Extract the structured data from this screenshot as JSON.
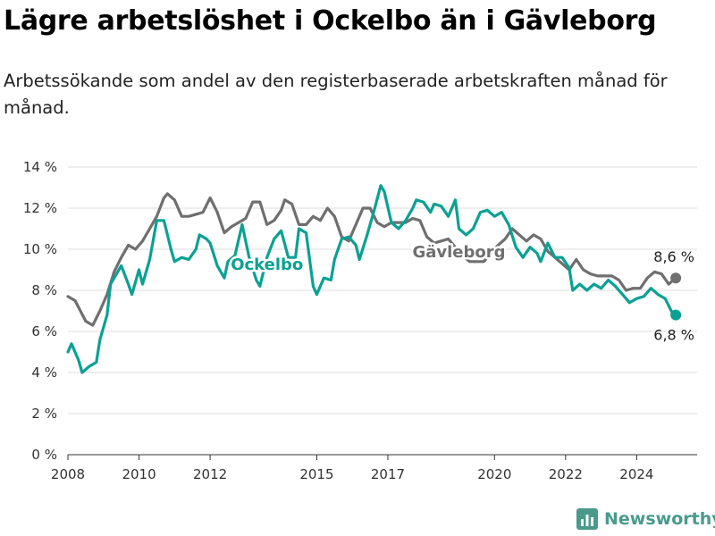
{
  "title": "Lägre arbetslöshet i Ockelbo än i Gävleborg",
  "subtitle": "Arbetssökande som andel av den registerbaserade arbetskraften månad för månad.",
  "brand": "Newsworthy",
  "colors": {
    "ockelbo": "#0aa193",
    "gavleborg": "#6f6f70",
    "grid": "#dcdcdc"
  },
  "icons": {
    "brand_logo": "bar-chart-icon"
  },
  "chart_data": {
    "type": "line",
    "title": "Lägre arbetslöshet i Ockelbo än i Gävleborg",
    "subtitle": "Arbetssökande som andel av den registerbaserade arbetskraften månad för månad.",
    "xlabel": "",
    "ylabel": "",
    "xlim": [
      2008,
      2025.7
    ],
    "ylim": [
      0,
      14
    ],
    "grid": true,
    "y_ticks": [
      "0 %",
      "2 %",
      "4 %",
      "6 %",
      "8 %",
      "10 %",
      "12 %",
      "14 %"
    ],
    "x_ticks": [
      "2008",
      "2010",
      "2012",
      "2015",
      "2017",
      "2020",
      "2022",
      "2024"
    ],
    "series": [
      {
        "name": "Gävleborg",
        "end_label": "8,6 %",
        "points": [
          [
            2008.0,
            7.7
          ],
          [
            2008.2,
            7.5
          ],
          [
            2008.5,
            6.5
          ],
          [
            2008.7,
            6.3
          ],
          [
            2008.9,
            7.0
          ],
          [
            2009.1,
            7.8
          ],
          [
            2009.3,
            8.9
          ],
          [
            2009.5,
            9.6
          ],
          [
            2009.7,
            10.2
          ],
          [
            2009.9,
            10.0
          ],
          [
            2010.1,
            10.4
          ],
          [
            2010.3,
            11.0
          ],
          [
            2010.5,
            11.6
          ],
          [
            2010.7,
            12.5
          ],
          [
            2010.8,
            12.7
          ],
          [
            2011.0,
            12.4
          ],
          [
            2011.2,
            11.6
          ],
          [
            2011.4,
            11.6
          ],
          [
            2011.6,
            11.7
          ],
          [
            2011.8,
            11.8
          ],
          [
            2012.0,
            12.5
          ],
          [
            2012.2,
            11.8
          ],
          [
            2012.4,
            10.8
          ],
          [
            2012.6,
            11.1
          ],
          [
            2012.8,
            11.3
          ],
          [
            2013.0,
            11.5
          ],
          [
            2013.2,
            12.3
          ],
          [
            2013.4,
            12.3
          ],
          [
            2013.6,
            11.2
          ],
          [
            2013.8,
            11.4
          ],
          [
            2014.0,
            11.9
          ],
          [
            2014.1,
            12.4
          ],
          [
            2014.3,
            12.2
          ],
          [
            2014.5,
            11.2
          ],
          [
            2014.7,
            11.2
          ],
          [
            2014.9,
            11.6
          ],
          [
            2015.1,
            11.4
          ],
          [
            2015.3,
            12.0
          ],
          [
            2015.5,
            11.6
          ],
          [
            2015.7,
            10.6
          ],
          [
            2015.9,
            10.4
          ],
          [
            2016.1,
            11.2
          ],
          [
            2016.3,
            12.0
          ],
          [
            2016.5,
            12.0
          ],
          [
            2016.7,
            11.3
          ],
          [
            2016.9,
            11.1
          ],
          [
            2017.1,
            11.3
          ],
          [
            2017.3,
            11.3
          ],
          [
            2017.5,
            11.3
          ],
          [
            2017.7,
            11.5
          ],
          [
            2017.9,
            11.4
          ],
          [
            2018.1,
            10.6
          ],
          [
            2018.3,
            10.3
          ],
          [
            2018.5,
            10.4
          ],
          [
            2018.7,
            10.5
          ],
          [
            2018.9,
            10.1
          ],
          [
            2019.1,
            9.7
          ],
          [
            2019.3,
            9.4
          ],
          [
            2019.5,
            9.4
          ],
          [
            2019.7,
            9.4
          ],
          [
            2019.9,
            9.8
          ],
          [
            2020.1,
            10.2
          ],
          [
            2020.3,
            10.5
          ],
          [
            2020.5,
            11.0
          ],
          [
            2020.7,
            10.7
          ],
          [
            2020.9,
            10.4
          ],
          [
            2021.1,
            10.7
          ],
          [
            2021.3,
            10.5
          ],
          [
            2021.5,
            9.9
          ],
          [
            2021.7,
            9.6
          ],
          [
            2021.9,
            9.3
          ],
          [
            2022.1,
            9.0
          ],
          [
            2022.3,
            9.5
          ],
          [
            2022.5,
            9.0
          ],
          [
            2022.7,
            8.8
          ],
          [
            2022.9,
            8.7
          ],
          [
            2023.1,
            8.7
          ],
          [
            2023.3,
            8.7
          ],
          [
            2023.5,
            8.5
          ],
          [
            2023.7,
            8.0
          ],
          [
            2023.9,
            8.1
          ],
          [
            2024.1,
            8.1
          ],
          [
            2024.3,
            8.6
          ],
          [
            2024.5,
            8.9
          ],
          [
            2024.7,
            8.8
          ],
          [
            2024.9,
            8.3
          ],
          [
            2025.1,
            8.6
          ]
        ]
      },
      {
        "name": "Ockelbo",
        "end_label": "6,8 %",
        "points": [
          [
            2008.0,
            5.0
          ],
          [
            2008.1,
            5.4
          ],
          [
            2008.3,
            4.6
          ],
          [
            2008.4,
            4.0
          ],
          [
            2008.6,
            4.3
          ],
          [
            2008.8,
            4.5
          ],
          [
            2008.9,
            5.6
          ],
          [
            2009.1,
            6.8
          ],
          [
            2009.2,
            8.3
          ],
          [
            2009.4,
            8.9
          ],
          [
            2009.5,
            9.2
          ],
          [
            2009.7,
            8.3
          ],
          [
            2009.8,
            7.8
          ],
          [
            2010.0,
            9.0
          ],
          [
            2010.1,
            8.3
          ],
          [
            2010.3,
            9.5
          ],
          [
            2010.5,
            11.4
          ],
          [
            2010.7,
            11.4
          ],
          [
            2010.9,
            10.0
          ],
          [
            2011.0,
            9.4
          ],
          [
            2011.2,
            9.6
          ],
          [
            2011.4,
            9.5
          ],
          [
            2011.6,
            10.0
          ],
          [
            2011.7,
            10.7
          ],
          [
            2011.9,
            10.5
          ],
          [
            2012.0,
            10.3
          ],
          [
            2012.2,
            9.2
          ],
          [
            2012.4,
            8.6
          ],
          [
            2012.5,
            9.4
          ],
          [
            2012.7,
            9.7
          ],
          [
            2012.9,
            11.2
          ],
          [
            2013.1,
            9.6
          ],
          [
            2013.3,
            8.5
          ],
          [
            2013.4,
            8.2
          ],
          [
            2013.6,
            9.6
          ],
          [
            2013.8,
            10.5
          ],
          [
            2014.0,
            10.9
          ],
          [
            2014.2,
            9.6
          ],
          [
            2014.4,
            9.6
          ],
          [
            2014.5,
            11.0
          ],
          [
            2014.7,
            10.8
          ],
          [
            2014.9,
            8.2
          ],
          [
            2015.0,
            7.8
          ],
          [
            2015.2,
            8.6
          ],
          [
            2015.4,
            8.5
          ],
          [
            2015.5,
            9.5
          ],
          [
            2015.7,
            10.5
          ],
          [
            2015.9,
            10.6
          ],
          [
            2016.1,
            10.2
          ],
          [
            2016.2,
            9.5
          ],
          [
            2016.4,
            10.6
          ],
          [
            2016.6,
            11.8
          ],
          [
            2016.8,
            13.1
          ],
          [
            2016.9,
            12.8
          ],
          [
            2017.1,
            11.3
          ],
          [
            2017.3,
            11.0
          ],
          [
            2017.5,
            11.4
          ],
          [
            2017.7,
            12.0
          ],
          [
            2017.8,
            12.4
          ],
          [
            2018.0,
            12.3
          ],
          [
            2018.2,
            11.8
          ],
          [
            2018.3,
            12.2
          ],
          [
            2018.5,
            12.1
          ],
          [
            2018.7,
            11.6
          ],
          [
            2018.9,
            12.4
          ],
          [
            2019.0,
            11.0
          ],
          [
            2019.2,
            10.7
          ],
          [
            2019.4,
            11.0
          ],
          [
            2019.6,
            11.8
          ],
          [
            2019.8,
            11.9
          ],
          [
            2020.0,
            11.6
          ],
          [
            2020.2,
            11.8
          ],
          [
            2020.4,
            11.2
          ],
          [
            2020.6,
            10.1
          ],
          [
            2020.8,
            9.6
          ],
          [
            2021.0,
            10.1
          ],
          [
            2021.2,
            9.8
          ],
          [
            2021.3,
            9.4
          ],
          [
            2021.5,
            10.3
          ],
          [
            2021.7,
            9.6
          ],
          [
            2021.9,
            9.6
          ],
          [
            2022.1,
            9.1
          ],
          [
            2022.2,
            8.0
          ],
          [
            2022.4,
            8.3
          ],
          [
            2022.6,
            8.0
          ],
          [
            2022.8,
            8.3
          ],
          [
            2023.0,
            8.1
          ],
          [
            2023.2,
            8.5
          ],
          [
            2023.4,
            8.2
          ],
          [
            2023.6,
            7.8
          ],
          [
            2023.8,
            7.4
          ],
          [
            2024.0,
            7.6
          ],
          [
            2024.2,
            7.7
          ],
          [
            2024.4,
            8.1
          ],
          [
            2024.6,
            7.8
          ],
          [
            2024.8,
            7.6
          ],
          [
            2025.0,
            6.9
          ],
          [
            2025.1,
            6.8
          ]
        ]
      }
    ],
    "series_labels": [
      {
        "text": "Gävleborg",
        "x": 2019.0,
        "y": 9.6
      },
      {
        "text": "Ockelbo",
        "x": 2013.6,
        "y": 9.0
      }
    ]
  }
}
